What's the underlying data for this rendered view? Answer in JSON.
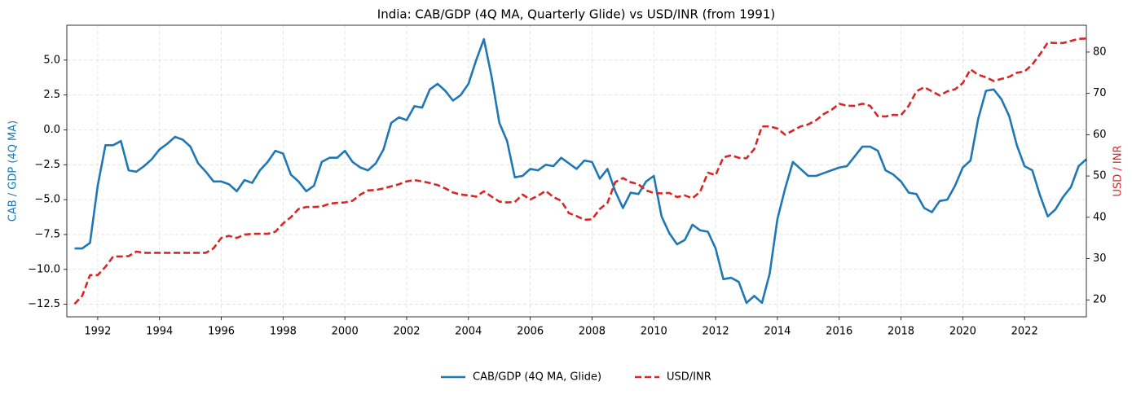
{
  "chart_data": {
    "type": "line",
    "title": "India: CAB/GDP (4Q MA, Quarterly Glide) vs USD/INR (from 1991)",
    "ylabel": "CAB / GDP (4Q MA)",
    "y2label": "USD / INR",
    "legend": "below",
    "grid": true,
    "xlim": [
      1991,
      2024
    ],
    "xticks": [
      1992,
      1994,
      1996,
      1998,
      2000,
      2002,
      2004,
      2006,
      2008,
      2010,
      2012,
      2014,
      2016,
      2018,
      2020,
      2022
    ],
    "ylim": [
      -13.4,
      7.5
    ],
    "yticks": [
      {
        "value": -12.5,
        "label": "−12.5"
      },
      {
        "value": -10,
        "label": "−10.0"
      },
      {
        "value": -7.5,
        "label": "−7.5"
      },
      {
        "value": -5,
        "label": "−5.0"
      },
      {
        "value": -2.5,
        "label": "−2.5"
      },
      {
        "value": 0,
        "label": "0.0"
      },
      2.5,
      {
        "value": 5,
        "label": "5.0"
      }
    ],
    "y2lim": [
      15.9,
      86.5
    ],
    "y2ticks": [
      20,
      30,
      40,
      50,
      60,
      70,
      80
    ],
    "x": [
      1991.25,
      1991.5,
      1991.75,
      1992,
      1992.25,
      1992.5,
      1992.75,
      1993,
      1993.25,
      1993.5,
      1993.75,
      1994,
      1994.25,
      1994.5,
      1994.75,
      1995,
      1995.25,
      1995.5,
      1995.75,
      1996,
      1996.25,
      1996.5,
      1996.75,
      1997,
      1997.25,
      1997.5,
      1997.75,
      1998,
      1998.25,
      1998.5,
      1998.75,
      1999,
      1999.25,
      1999.5,
      1999.75,
      2000,
      2000.25,
      2000.5,
      2000.75,
      2001,
      2001.25,
      2001.5,
      2001.75,
      2002,
      2002.25,
      2002.5,
      2002.75,
      2003,
      2003.25,
      2003.5,
      2003.75,
      2004,
      2004.25,
      2004.5,
      2004.75,
      2005,
      2005.25,
      2005.5,
      2005.75,
      2006,
      2006.25,
      2006.5,
      2006.75,
      2007,
      2007.25,
      2007.5,
      2007.75,
      2008,
      2008.25,
      2008.5,
      2008.75,
      2009,
      2009.25,
      2009.5,
      2009.75,
      2010,
      2010.25,
      2010.5,
      2010.75,
      2011,
      2011.25,
      2011.5,
      2011.75,
      2012,
      2012.25,
      2012.5,
      2012.75,
      2013,
      2013.25,
      2013.5,
      2013.75,
      2014,
      2014.25,
      2014.5,
      2014.75,
      2015,
      2015.25,
      2015.5,
      2015.75,
      2016,
      2016.25,
      2016.5,
      2016.75,
      2017,
      2017.25,
      2017.5,
      2017.75,
      2018,
      2018.25,
      2018.5,
      2018.75,
      2019,
      2019.25,
      2019.5,
      2019.75,
      2020,
      2020.25,
      2020.5,
      2020.75,
      2021,
      2021.25,
      2021.5,
      2021.75,
      2022,
      2022.25,
      2022.5,
      2022.75,
      2023,
      2023.25,
      2023.5,
      2023.75,
      2024
    ],
    "series": [
      {
        "name": "CAB/GDP (4Q MA, Glide)",
        "color": "#1f77b4",
        "dash": false,
        "axis": "y",
        "values": [
          -8.5,
          -8.5,
          -8.1,
          -4.0,
          -1.1,
          -1.1,
          -0.8,
          -2.9,
          -3.0,
          -2.6,
          -2.1,
          -1.4,
          -1.0,
          -0.5,
          -0.7,
          -1.2,
          -2.4,
          -3.0,
          -3.7,
          -3.7,
          -3.9,
          -4.4,
          -3.6,
          -3.8,
          -2.9,
          -2.3,
          -1.5,
          -1.7,
          -3.2,
          -3.7,
          -4.4,
          -4.0,
          -2.3,
          -2.0,
          -2.0,
          -1.5,
          -2.3,
          -2.7,
          -2.9,
          -2.4,
          -1.4,
          0.5,
          0.9,
          0.7,
          1.7,
          1.6,
          2.9,
          3.3,
          2.8,
          2.1,
          2.5,
          3.3,
          5.0,
          6.5,
          3.8,
          0.5,
          -0.8,
          -3.4,
          -3.3,
          -2.8,
          -2.9,
          -2.5,
          -2.6,
          -2.0,
          -2.4,
          -2.8,
          -2.2,
          -2.3,
          -3.5,
          -2.8,
          -4.4,
          -5.6,
          -4.5,
          -4.6,
          -3.7,
          -3.3,
          -6.2,
          -7.4,
          -8.2,
          -7.9,
          -6.8,
          -7.2,
          -7.3,
          -8.5,
          -10.7,
          -10.6,
          -10.9,
          -12.4,
          -11.9,
          -12.4,
          -10.3,
          -6.4,
          -4.2,
          -2.3,
          -2.8,
          -3.3,
          -3.3,
          -3.1,
          -2.9,
          -2.7,
          -2.6,
          -1.9,
          -1.2,
          -1.2,
          -1.5,
          -2.9,
          -3.2,
          -3.7,
          -4.5,
          -4.6,
          -5.6,
          -5.9,
          -5.1,
          -5.0,
          -4.0,
          -2.7,
          -2.2,
          0.8,
          2.8,
          2.9,
          2.2,
          1.0,
          -1.1,
          -2.6,
          -2.9,
          -4.7,
          -6.2,
          -5.7,
          -4.8,
          -4.1,
          -2.6,
          -2.1
        ]
      },
      {
        "name": "USD/INR",
        "color": "#d62728",
        "dash": true,
        "axis": "y2",
        "values": [
          19.0,
          21,
          26,
          26,
          28,
          30.5,
          30.5,
          30.6,
          31.7,
          31.4,
          31.4,
          31.4,
          31.4,
          31.4,
          31.4,
          31.4,
          31.4,
          31.4,
          32.5,
          35,
          35.5,
          35,
          35.8,
          36,
          36,
          36,
          36.5,
          38.5,
          40,
          42,
          42.5,
          42.5,
          42.6,
          43.3,
          43.5,
          43.6,
          44.0,
          45.5,
          46.5,
          46.6,
          47,
          47.5,
          48,
          48.7,
          49,
          48.7,
          48.3,
          47.8,
          47,
          46,
          45.5,
          45.3,
          45,
          46.3,
          45,
          43.8,
          43.6,
          43.7,
          45.5,
          44.3,
          45.2,
          46.4,
          44.9,
          44,
          41,
          40.3,
          39.4,
          39.5,
          42,
          43.5,
          48.5,
          49.5,
          48.5,
          48,
          46.5,
          45.9,
          45.8,
          45.9,
          44.9,
          45.3,
          44.6,
          46.2,
          50.8,
          50.2,
          54.5,
          55,
          54.4,
          54.3,
          56.5,
          62,
          62,
          61.5,
          60,
          61,
          62,
          62.5,
          63.5,
          65,
          66,
          67.5,
          67,
          67,
          67.5,
          67,
          64.5,
          64.4,
          64.8,
          64.7,
          67,
          70.5,
          71.5,
          70.5,
          69.5,
          70.5,
          71,
          72.5,
          75.8,
          74.5,
          73.9,
          73,
          73.5,
          74,
          75,
          75.3,
          77,
          79.5,
          82.3,
          82.2,
          82.2,
          82.7,
          83.2,
          83.3
        ]
      }
    ]
  }
}
